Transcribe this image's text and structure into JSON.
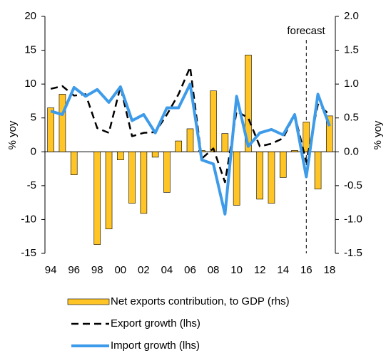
{
  "chart_data": {
    "type": "bar-line",
    "categories": [
      "94",
      null,
      "96",
      null,
      "98",
      null,
      "00",
      null,
      "02",
      null,
      "04",
      null,
      "06",
      null,
      "08",
      null,
      "10",
      null,
      "12",
      null,
      "14",
      null,
      "16",
      null,
      "18"
    ],
    "ylim": [
      -15,
      20
    ],
    "yticks": [
      -15,
      -10,
      -5,
      0,
      5,
      10,
      15,
      20
    ],
    "y2lim": [
      -1.5,
      2.0
    ],
    "y2ticks": [
      -1.5,
      {
        "value": -1,
        "label": "-1.0"
      },
      -0.5,
      {
        "value": 0,
        "label": "0.0"
      },
      0.5,
      {
        "value": 1,
        "label": "1.0"
      },
      1.5,
      {
        "value": 2,
        "label": "2.0"
      }
    ],
    "ylabel": "% yoy",
    "y2label": "% yoy",
    "annotation": "forecast",
    "series": [
      {
        "name": "Net exports contribution, to GDP (rhs)",
        "kind": "bar",
        "axis": "y2",
        "color": "#ffc425",
        "values": [
          0.65,
          0.85,
          -0.34,
          0,
          -1.37,
          -1.14,
          -0.12,
          -0.76,
          -0.91,
          -0.08,
          -0.6,
          0.16,
          0.34,
          0.02,
          0.9,
          0.27,
          -0.79,
          1.43,
          -0.7,
          -0.76,
          -0.38,
          0.02,
          0.44,
          -0.55,
          0.53
        ]
      },
      {
        "name": "Export growth (lhs)",
        "kind": "dashed-line",
        "color": "#000000",
        "values": [
          9.3,
          9.7,
          8.3,
          8.5,
          3.5,
          2.8,
          9.6,
          2.3,
          2.8,
          2.9,
          5.5,
          8.5,
          12.5,
          -1,
          0.5,
          -4.5,
          6,
          5,
          0.8,
          1.2,
          2,
          5.5,
          -1.5,
          7,
          5.5
        ]
      },
      {
        "name": "Import growth (lhs)",
        "kind": "line",
        "color": "#3d9be9",
        "values": [
          6,
          5.5,
          9.5,
          8.2,
          9.2,
          7.3,
          9.6,
          4.6,
          5.5,
          2.8,
          6.5,
          6.5,
          10,
          -1.2,
          -1.8,
          -9.2,
          8.2,
          0.8,
          2.8,
          3.3,
          2.5,
          5.5,
          -3.7,
          8.5,
          3.8
        ]
      }
    ]
  }
}
